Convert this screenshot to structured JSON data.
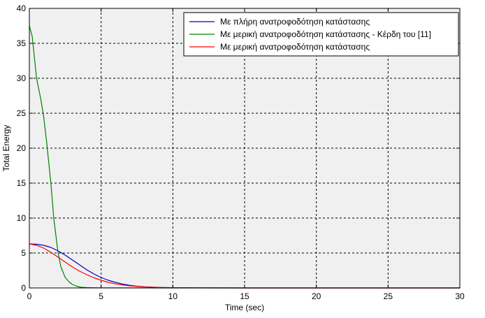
{
  "chart_data": {
    "type": "line",
    "title": "",
    "xlabel": "Time (sec)",
    "ylabel": "Total Energy",
    "xlim": [
      0,
      30
    ],
    "ylim": [
      0,
      40
    ],
    "xticks": [
      0,
      5,
      10,
      15,
      20,
      25,
      30
    ],
    "yticks": [
      0,
      5,
      10,
      15,
      20,
      25,
      30,
      35,
      40
    ],
    "grid": true,
    "legend_position": "top-right",
    "background": "#f0f0f0",
    "series": [
      {
        "name": "Με πλήρη ανατροφοδότηση κατάστασης",
        "color": "#0000c0",
        "x": [
          0,
          0.5,
          1,
          1.5,
          2,
          2.5,
          3,
          3.5,
          4,
          4.5,
          5,
          5.5,
          6,
          6.5,
          7,
          7.5,
          8,
          9,
          10,
          12,
          15,
          20,
          25,
          30
        ],
        "y": [
          6.3,
          6.25,
          6.1,
          5.8,
          5.3,
          4.7,
          4.0,
          3.3,
          2.6,
          2.0,
          1.5,
          1.1,
          0.8,
          0.55,
          0.38,
          0.25,
          0.17,
          0.08,
          0.04,
          0.01,
          0,
          0,
          0,
          0
        ]
      },
      {
        "name": "Με μερική ανατροφοδότηση κατάστασης - Κέρδη του [11]",
        "color": "#008000",
        "x": [
          0,
          0.2,
          0.5,
          0.8,
          1,
          1.2,
          1.5,
          1.7,
          2,
          2.2,
          2.5,
          2.8,
          3,
          3.3,
          3.6,
          4,
          5,
          10,
          15,
          20,
          25,
          30
        ],
        "y": [
          37.5,
          36,
          30,
          27,
          24.5,
          21,
          15,
          10,
          5,
          3,
          1.5,
          0.8,
          0.5,
          0.25,
          0.1,
          0.05,
          0.01,
          0,
          0,
          0,
          0,
          0
        ]
      },
      {
        "name": "Με μερική ανατροφοδότηση κατάστασης",
        "color": "#ff0000",
        "x": [
          0,
          0.5,
          1,
          1.5,
          2,
          2.5,
          3,
          3.5,
          4,
          4.5,
          5,
          5.5,
          6,
          6.5,
          7,
          8,
          9,
          10,
          12,
          15,
          20,
          25,
          30
        ],
        "y": [
          6.3,
          6.1,
          5.7,
          5.1,
          4.4,
          3.7,
          3.0,
          2.4,
          1.9,
          1.45,
          1.1,
          0.8,
          0.58,
          0.42,
          0.3,
          0.15,
          0.07,
          0.03,
          0.01,
          0,
          0,
          0,
          0
        ]
      }
    ]
  }
}
